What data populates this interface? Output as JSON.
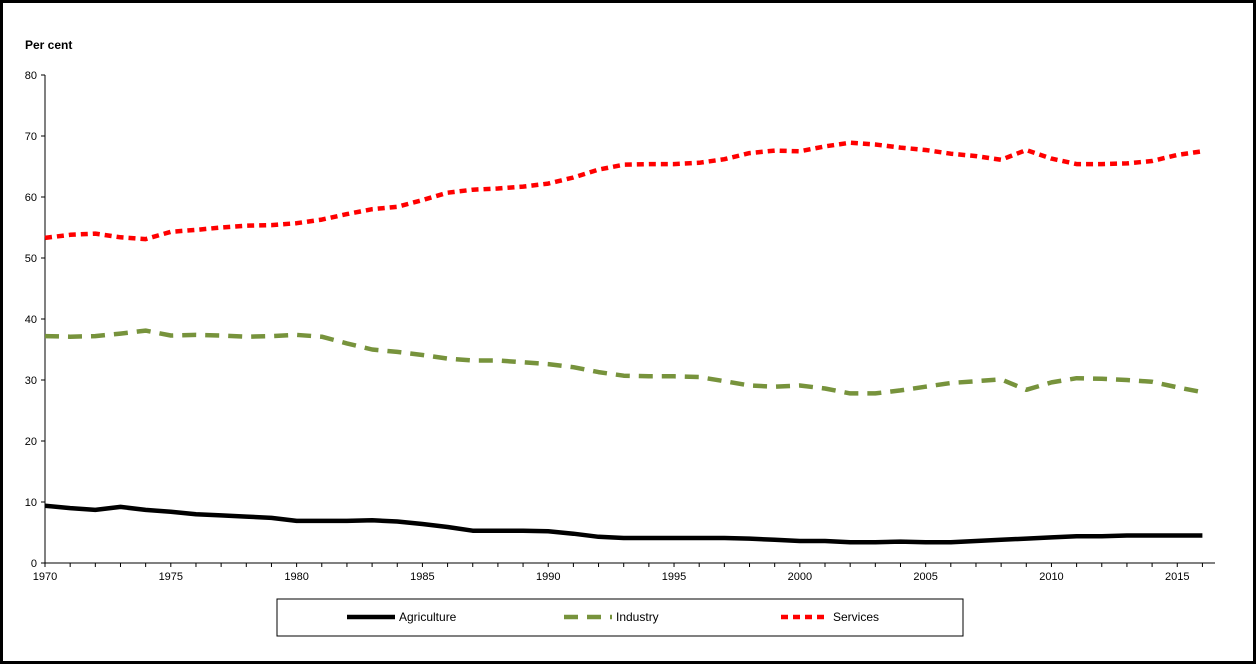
{
  "chart_data": {
    "type": "line",
    "ylabel": "Per cent",
    "ylim": [
      0,
      80
    ],
    "yticks": [
      0,
      10,
      20,
      30,
      40,
      50,
      60,
      70,
      80
    ],
    "xlim": [
      1970,
      2016.5
    ],
    "xticks": [
      1970,
      1975,
      1980,
      1985,
      1990,
      1995,
      2000,
      2005,
      2010,
      2015
    ],
    "grid": false,
    "legend_position": "bottom",
    "x": [
      1970,
      1971,
      1972,
      1973,
      1974,
      1975,
      1976,
      1977,
      1978,
      1979,
      1980,
      1981,
      1982,
      1983,
      1984,
      1985,
      1986,
      1987,
      1988,
      1989,
      1990,
      1991,
      1992,
      1993,
      1994,
      1995,
      1996,
      1997,
      1998,
      1999,
      2000,
      2001,
      2002,
      2003,
      2004,
      2005,
      2006,
      2007,
      2008,
      2009,
      2010,
      2011,
      2012,
      2013,
      2014,
      2015,
      2016
    ],
    "series": [
      {
        "name": "Agriculture",
        "color": "#000000",
        "dash": "solid",
        "values": [
          9.4,
          9.0,
          8.7,
          9.2,
          8.7,
          8.4,
          8.0,
          7.8,
          7.6,
          7.4,
          6.9,
          6.9,
          6.9,
          7.0,
          6.8,
          6.4,
          5.9,
          5.3,
          5.3,
          5.3,
          5.2,
          4.8,
          4.3,
          4.1,
          4.1,
          4.1,
          4.1,
          4.1,
          4.0,
          3.8,
          3.6,
          3.6,
          3.4,
          3.4,
          3.5,
          3.4,
          3.4,
          3.6,
          3.8,
          4.0,
          4.2,
          4.4,
          4.4,
          4.5,
          4.5,
          4.5,
          4.5
        ]
      },
      {
        "name": "Industry",
        "color": "#77933c",
        "dash": "long",
        "values": [
          37.2,
          37.1,
          37.2,
          37.6,
          38.1,
          37.3,
          37.4,
          37.3,
          37.1,
          37.2,
          37.4,
          37.1,
          36.0,
          35.0,
          34.6,
          34.1,
          33.5,
          33.2,
          33.2,
          32.9,
          32.6,
          32.1,
          31.3,
          30.7,
          30.6,
          30.6,
          30.5,
          29.8,
          29.1,
          28.9,
          29.1,
          28.6,
          27.8,
          27.8,
          28.3,
          28.9,
          29.5,
          29.8,
          30.1,
          28.4,
          29.6,
          30.3,
          30.2,
          30.0,
          29.7,
          28.8,
          28.0
        ]
      },
      {
        "name": "Services",
        "color": "#ff0000",
        "dash": "short",
        "values": [
          53.3,
          53.8,
          54.0,
          53.4,
          53.1,
          54.3,
          54.6,
          55.0,
          55.3,
          55.4,
          55.7,
          56.3,
          57.2,
          58.0,
          58.4,
          59.5,
          60.7,
          61.2,
          61.4,
          61.7,
          62.2,
          63.2,
          64.5,
          65.3,
          65.4,
          65.4,
          65.6,
          66.2,
          67.2,
          67.6,
          67.5,
          68.3,
          68.9,
          68.6,
          68.1,
          67.7,
          67.1,
          66.7,
          66.1,
          67.7,
          66.3,
          65.4,
          65.4,
          65.5,
          65.9,
          66.9,
          67.5
        ]
      }
    ]
  }
}
